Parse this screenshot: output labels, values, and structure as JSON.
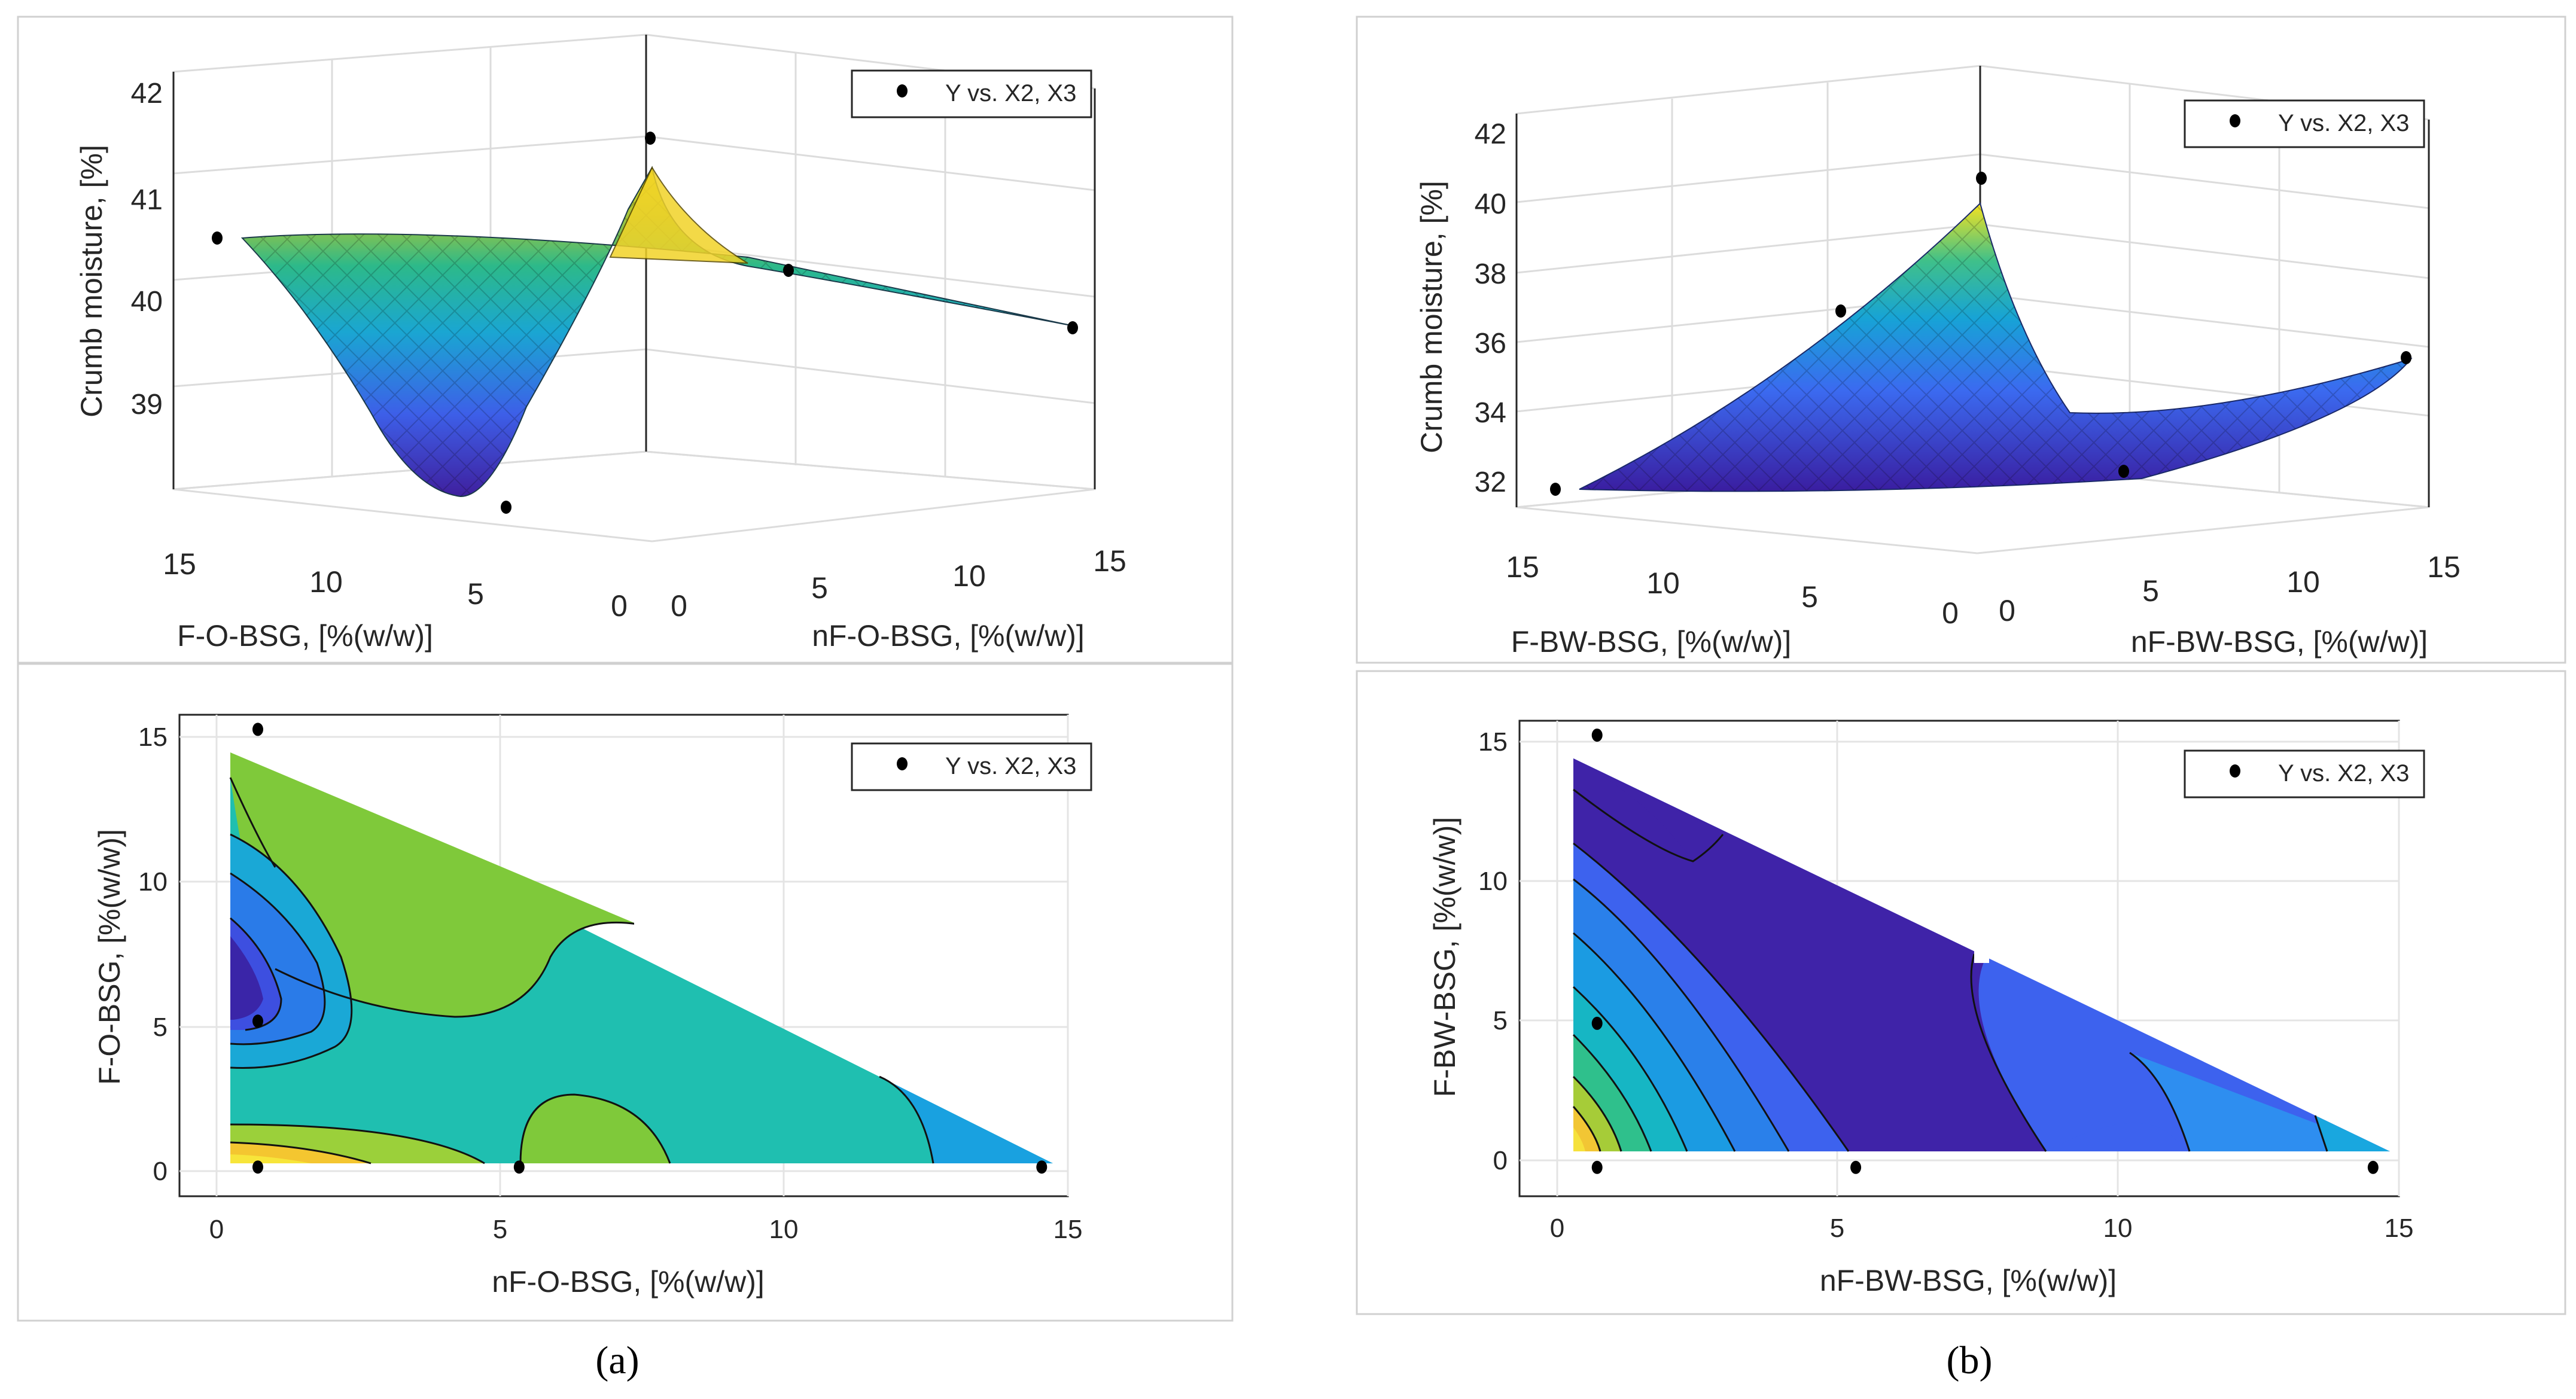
{
  "figure": {
    "panels": [
      {
        "caption": "(a)",
        "surface": {
          "type": "surface",
          "zlabel": "Crumb moisture, [%]",
          "xlabel_left": "F-O-BSG, [%(w/w)]",
          "xlabel_right": "nF-O-BSG, [%(w/w)]",
          "left_ticks": [
            "15",
            "10",
            "5",
            "0"
          ],
          "right_ticks": [
            "0",
            "5",
            "10",
            "15"
          ],
          "z_ticks": [
            "42",
            "41",
            "40",
            "39"
          ],
          "legend": "Y vs. X2, X3"
        },
        "contour": {
          "type": "contour",
          "xlabel": "nF-O-BSG, [%(w/w)]",
          "ylabel": "F-O-BSG, [%(w/w)]",
          "x_ticks": [
            "0",
            "5",
            "10",
            "15"
          ],
          "y_ticks": [
            "0",
            "5",
            "10",
            "15"
          ],
          "legend": "Y vs. X2, X3"
        }
      },
      {
        "caption": "(b)",
        "surface": {
          "type": "surface",
          "zlabel": "Crumb moisture, [%]",
          "xlabel_left": "F-BW-BSG, [%(w/w)]",
          "xlabel_right": "nF-BW-BSG, [%(w/w)]",
          "left_ticks": [
            "15",
            "10",
            "5",
            "0"
          ],
          "right_ticks": [
            "0",
            "5",
            "10",
            "15"
          ],
          "z_ticks": [
            "42",
            "40",
            "38",
            "36",
            "34",
            "32"
          ],
          "legend": "Y vs. X2, X3"
        },
        "contour": {
          "type": "contour",
          "xlabel": "nF-BW-BSG, [%(w/w)]",
          "ylabel": "F-BW-BSG, [%(w/w)]",
          "x_ticks": [
            "0",
            "5",
            "10",
            "15"
          ],
          "y_ticks": [
            "0",
            "5",
            "10",
            "15"
          ],
          "legend": "Y vs. X2, X3"
        }
      }
    ]
  },
  "chart_data": [
    {
      "type": "scatter",
      "panel": "(a) 3D surface",
      "xlabel": "nF-O-BSG, [%(w/w)]",
      "ylabel": "F-O-BSG, [%(w/w)]",
      "zlabel": "Crumb moisture, [%]",
      "zlim": [
        38,
        42
      ],
      "series": [
        {
          "name": "Y vs. X2, X3",
          "points": [
            {
              "x": 0,
              "y": 15,
              "z": 40.6
            },
            {
              "x": 0,
              "y": 5,
              "z": 38.1
            },
            {
              "x": 0,
              "y": 0,
              "z": 41.6
            },
            {
              "x": 5,
              "y": 0,
              "z": 40.3
            },
            {
              "x": 15,
              "y": 0,
              "z": 39.7
            }
          ]
        }
      ]
    },
    {
      "type": "scatter",
      "panel": "(a) contour",
      "xlabel": "nF-O-BSG, [%(w/w)]",
      "ylabel": "F-O-BSG, [%(w/w)]",
      "xlim": [
        -1.5,
        15.5
      ],
      "ylim": [
        -1,
        15.5
      ],
      "series": [
        {
          "name": "Y vs. X2, X3",
          "points": [
            {
              "x": 0,
              "y": 15
            },
            {
              "x": 0,
              "y": 5
            },
            {
              "x": 0,
              "y": 0
            },
            {
              "x": 5,
              "y": 0
            },
            {
              "x": 15,
              "y": 0
            }
          ]
        }
      ]
    },
    {
      "type": "scatter",
      "panel": "(b) 3D surface",
      "xlabel": "nF-BW-BSG, [%(w/w)]",
      "ylabel": "F-BW-BSG, [%(w/w)]",
      "zlabel": "Crumb moisture, [%]",
      "zlim": [
        31,
        42.5
      ],
      "series": [
        {
          "name": "Y vs. X2, X3",
          "points": [
            {
              "x": 0,
              "y": 15,
              "z": 31.8
            },
            {
              "x": 0,
              "y": 5,
              "z": 36.9
            },
            {
              "x": 0,
              "y": 0,
              "z": 40.7
            },
            {
              "x": 5,
              "y": 0,
              "z": 32.2
            },
            {
              "x": 15,
              "y": 0,
              "z": 35.5
            }
          ]
        }
      ]
    },
    {
      "type": "scatter",
      "panel": "(b) contour",
      "xlabel": "nF-BW-BSG, [%(w/w)]",
      "ylabel": "F-BW-BSG, [%(w/w)]",
      "xlim": [
        -1.5,
        15.5
      ],
      "ylim": [
        -1,
        15.5
      ],
      "series": [
        {
          "name": "Y vs. X2, X3",
          "points": [
            {
              "x": 0,
              "y": 15
            },
            {
              "x": 0,
              "y": 5
            },
            {
              "x": 0,
              "y": 0
            },
            {
              "x": 5,
              "y": 0
            },
            {
              "x": 15,
              "y": 0
            }
          ]
        }
      ]
    }
  ]
}
